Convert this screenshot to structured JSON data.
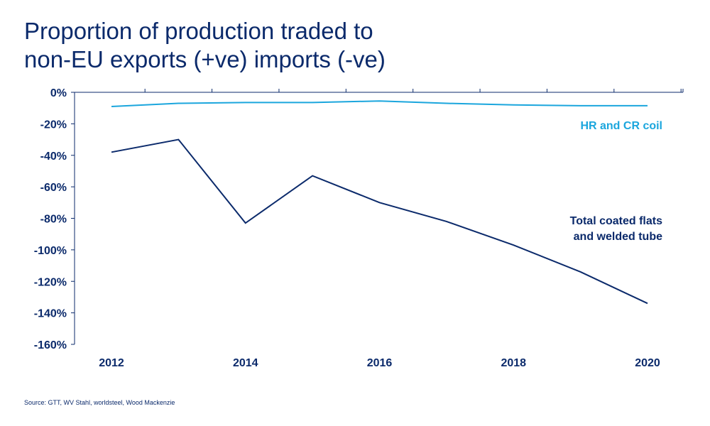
{
  "chart_data": {
    "type": "line",
    "title": "Proportion of production traded to non-EU exports (+ve) imports (-ve)",
    "title_lines": [
      "Proportion of production traded to",
      "non-EU exports (+ve) imports (-ve)"
    ],
    "xlabel": "",
    "ylabel": "",
    "x": [
      2012,
      2013,
      2014,
      2015,
      2016,
      2017,
      2018,
      2019,
      2020
    ],
    "x_tick_labels": [
      "2012",
      "2014",
      "2016",
      "2018",
      "2020"
    ],
    "x_tick_values": [
      2012,
      2014,
      2016,
      2018,
      2020
    ],
    "ylim": [
      -160,
      0
    ],
    "y_ticks": [
      0,
      -20,
      -40,
      -60,
      -80,
      -100,
      -120,
      -140,
      -160
    ],
    "y_tick_labels": [
      "0%",
      "-20%",
      "-40%",
      "-60%",
      "-80%",
      "-100%",
      "-120%",
      "-140%",
      "-160%"
    ],
    "grid": false,
    "series": [
      {
        "name": "HR and CR coil",
        "label_lines": [
          "HR and CR coil"
        ],
        "color": "#1ba6dd",
        "values": [
          -9,
          -7,
          -6.5,
          -6.5,
          -5.5,
          -7,
          -8,
          -8.5,
          -8.5
        ]
      },
      {
        "name": "Total coated flats and welded tube",
        "label_lines": [
          "Total coated flats",
          "and welded tube"
        ],
        "color": "#0b2a6b",
        "values": [
          -38,
          -30,
          -83,
          -53,
          -70,
          -82,
          -97,
          -114,
          -134
        ]
      }
    ],
    "source": "Source: GTT, WV Stahl, worldsteel, Wood Mackenzie"
  }
}
